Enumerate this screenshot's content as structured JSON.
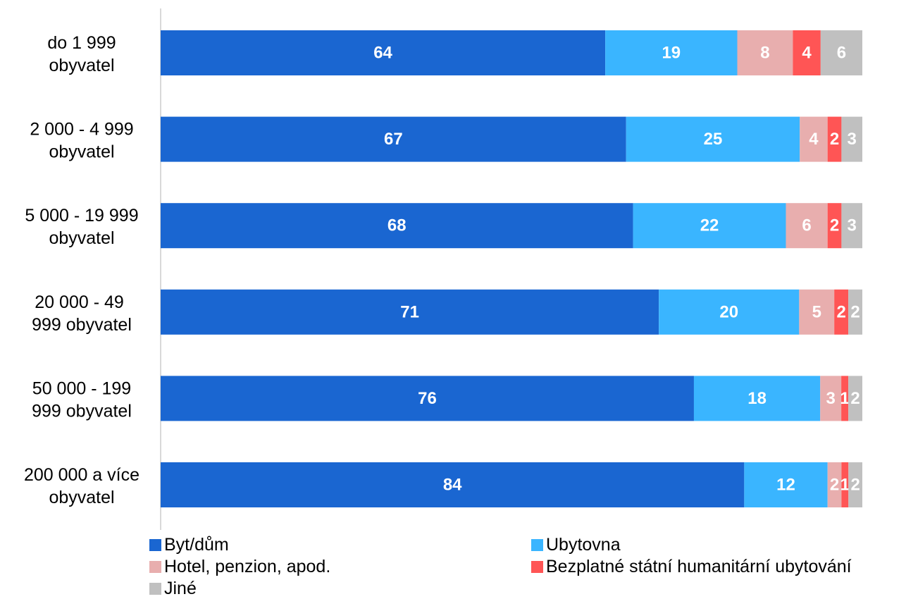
{
  "chart_data": {
    "type": "bar",
    "orientation": "horizontal",
    "stacked": true,
    "categories": [
      [
        "do 1 999",
        "obyvatel"
      ],
      [
        "2 000 - 4 999",
        "obyvatel"
      ],
      [
        "5 000 - 19 999",
        "obyvatel"
      ],
      [
        "20 000 - 49 ",
        "999 obyvatel"
      ],
      [
        "50 000 - 199",
        "999 obyvatel"
      ],
      [
        "200 000 a více",
        "obyvatel"
      ]
    ],
    "series": [
      {
        "name": "Byt/dům",
        "color": "#1a66d1",
        "values": [
          64,
          67,
          68,
          71,
          76,
          84
        ]
      },
      {
        "name": "Ubytovna",
        "color": "#3ab5ff",
        "values": [
          19,
          25,
          22,
          20,
          18,
          12
        ]
      },
      {
        "name": "Hotel, penzion, apod.",
        "color": "#e8aeae",
        "values": [
          8,
          4,
          6,
          5,
          3,
          2
        ]
      },
      {
        "name": "Bezplatné státní humanitární ubytování",
        "color": "#ff5555",
        "values": [
          4,
          2,
          2,
          2,
          1,
          1
        ]
      },
      {
        "name": "Jiné",
        "color": "#c0c0c0",
        "values": [
          6,
          3,
          3,
          2,
          2,
          2
        ]
      }
    ],
    "title": "",
    "xlabel": "",
    "ylabel": "",
    "grid": false,
    "legend_position": "bottom"
  }
}
